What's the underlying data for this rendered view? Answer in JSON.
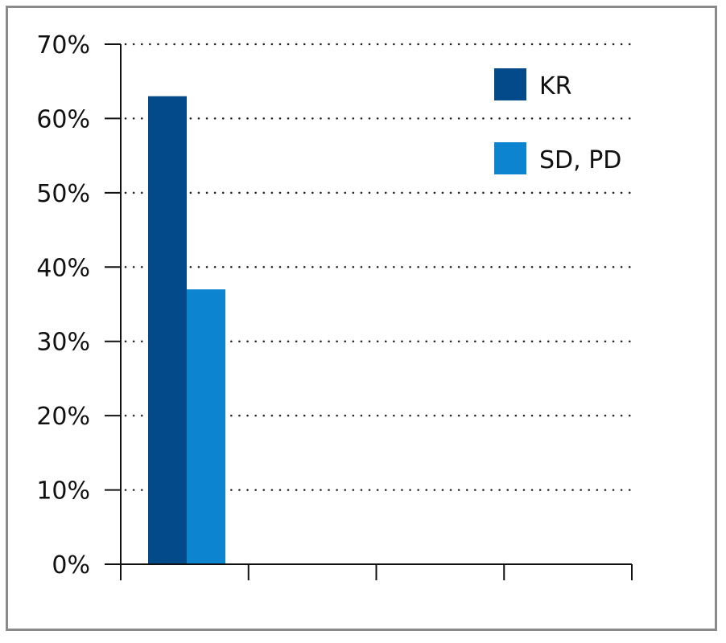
{
  "chart_data": {
    "type": "bar",
    "categories": [
      "",
      "",
      "",
      ""
    ],
    "series": [
      {
        "name": "KR",
        "values": [
          63,
          null,
          null,
          null
        ],
        "color": "#034a8a"
      },
      {
        "name": "SD, PD",
        "values": [
          37,
          null,
          null,
          null
        ],
        "color": "#0d84cf"
      }
    ],
    "title": "",
    "xlabel": "",
    "ylabel": "",
    "ylim": [
      0,
      70
    ],
    "yticks": [
      0,
      10,
      20,
      30,
      40,
      50,
      60,
      70
    ],
    "ytick_labels": [
      "0%",
      "10%",
      "20%",
      "30%",
      "40%",
      "50%",
      "60%",
      "70%"
    ],
    "grid": true,
    "legend": "top-right"
  }
}
